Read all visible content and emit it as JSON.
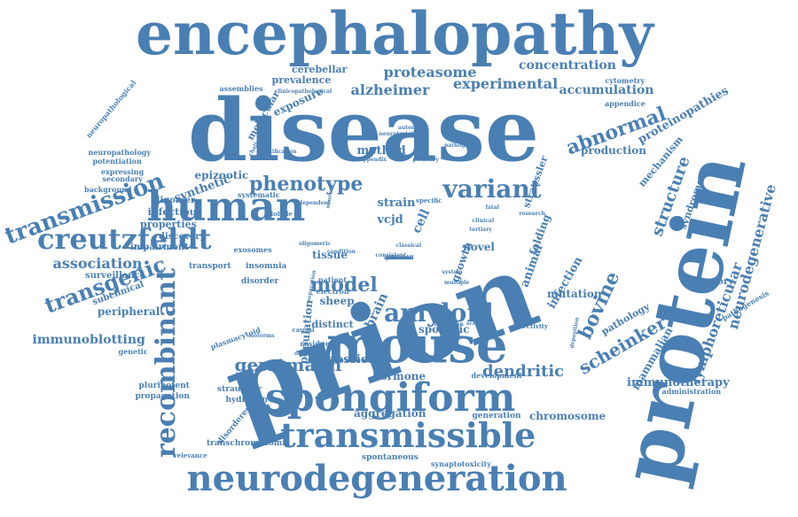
{
  "word_cloud": {
    "color": "#4a7fb3",
    "words": [
      {
        "text": "prion",
        "size": "xxl",
        "orientation": -20
      },
      {
        "text": "disease",
        "size": "xxl",
        "orientation": 0
      },
      {
        "text": "protein",
        "size": "xxl",
        "orientation": -78
      },
      {
        "text": "encephalopathy",
        "size": "xl",
        "orientation": 0
      },
      {
        "text": "mouse",
        "size": "xl",
        "orientation": 0
      },
      {
        "text": "spongiform",
        "size": "xl",
        "orientation": 0
      },
      {
        "text": "neurodegeneration",
        "size": "xl",
        "orientation": 0
      },
      {
        "text": "transmissible",
        "size": "xl",
        "orientation": 0
      },
      {
        "text": "human",
        "size": "l",
        "orientation": 0
      },
      {
        "text": "creutzfeldt",
        "size": "l",
        "orientation": 0
      },
      {
        "text": "transmission",
        "size": "l",
        "orientation": -20
      },
      {
        "text": "transgenic",
        "size": "l",
        "orientation": -20
      },
      {
        "text": "amyloid",
        "size": "l",
        "orientation": 0
      },
      {
        "text": "recombinant",
        "size": "l",
        "orientation": -90
      },
      {
        "text": "variant",
        "size": "m",
        "orientation": 0
      },
      {
        "text": "phenotype",
        "size": "m",
        "orientation": 0
      },
      {
        "text": "abnormal",
        "size": "m",
        "orientation": -20
      },
      {
        "text": "proteasome",
        "size": "m",
        "orientation": 0
      },
      {
        "text": "experimental",
        "size": "m",
        "orientation": 0
      },
      {
        "text": "alzheimer",
        "size": "m",
        "orientation": 0
      },
      {
        "text": "concentration",
        "size": "m",
        "orientation": 0
      },
      {
        "text": "accumulation",
        "size": "m",
        "orientation": 0
      },
      {
        "text": "model",
        "size": "m",
        "orientation": 0
      },
      {
        "text": "gerstmann",
        "size": "m",
        "orientation": 0
      },
      {
        "text": "dendritic",
        "size": "m",
        "orientation": 0
      },
      {
        "text": "bovine",
        "size": "m",
        "orientation": -65
      },
      {
        "text": "scheinker",
        "size": "m",
        "orientation": -30
      },
      {
        "text": "structure",
        "size": "m",
        "orientation": -70
      },
      {
        "text": "neurodegenerative",
        "size": "m",
        "orientation": -75
      },
      {
        "text": "lymphoreticular",
        "size": "m",
        "orientation": -70
      },
      {
        "text": "association",
        "size": "s",
        "orientation": 0
      },
      {
        "text": "immunoblotting",
        "size": "s",
        "orientation": 0
      },
      {
        "text": "immunotherapy",
        "size": "s",
        "orientation": 0
      },
      {
        "text": "expression",
        "size": "s",
        "orientation": 0
      },
      {
        "text": "hormone",
        "size": "s",
        "orientation": 0
      },
      {
        "text": "aggregation",
        "size": "s",
        "orientation": 0
      },
      {
        "text": "chromosome",
        "size": "s",
        "orientation": 0
      },
      {
        "text": "production",
        "size": "s",
        "orientation": 0
      },
      {
        "text": "mechanism",
        "size": "s",
        "orientation": -50
      },
      {
        "text": "syndrome",
        "size": "s",
        "orientation": -70
      },
      {
        "text": "proteinopathies",
        "size": "s",
        "orientation": -30
      },
      {
        "text": "strain",
        "size": "s",
        "orientation": 0
      },
      {
        "text": "vcjd",
        "size": "s",
        "orientation": 0
      },
      {
        "text": "method",
        "size": "s",
        "orientation": 0
      },
      {
        "text": "cell",
        "size": "s",
        "orientation": -65
      },
      {
        "text": "brain",
        "size": "s",
        "orientation": -65
      },
      {
        "text": "sheep",
        "size": "s",
        "orientation": 0
      },
      {
        "text": "novel",
        "size": "s",
        "orientation": 0
      },
      {
        "text": "infection",
        "size": "s",
        "orientation": -60
      },
      {
        "text": "mutation",
        "size": "s",
        "orientation": 0
      },
      {
        "text": "folding",
        "size": "s",
        "orientation": -70
      },
      {
        "text": "synthetic",
        "size": "s",
        "orientation": -20
      },
      {
        "text": "epizootic",
        "size": "s",
        "orientation": 0
      },
      {
        "text": "infectious",
        "size": "s",
        "orientation": 0
      },
      {
        "text": "properties",
        "size": "s",
        "orientation": 0
      },
      {
        "text": "exposure",
        "size": "s",
        "orientation": -25
      },
      {
        "text": "prevalence",
        "size": "s",
        "orientation": 0
      },
      {
        "text": "cerebellar",
        "size": "s",
        "orientation": 0
      },
      {
        "text": "molecular",
        "size": "s",
        "orientation": -60
      },
      {
        "text": "population",
        "size": "s",
        "orientation": -85
      },
      {
        "text": "peripheral",
        "size": "s",
        "orientation": 0
      },
      {
        "text": "tissue",
        "size": "s",
        "orientation": 0
      },
      {
        "text": "sporadic",
        "size": "s",
        "orientation": 0
      },
      {
        "text": "distinct",
        "size": "s",
        "orientation": 0
      },
      {
        "text": "mammalian",
        "size": "s",
        "orientation": -60
      },
      {
        "text": "pathology",
        "size": "s",
        "orientation": -30
      },
      {
        "text": "laboratory",
        "size": "s",
        "orientation": 0
      },
      {
        "text": "animal",
        "size": "s",
        "orientation": -70
      },
      {
        "text": "growth",
        "size": "s",
        "orientation": -70
      },
      {
        "text": "straussler",
        "size": "s",
        "orientation": -70
      },
      {
        "text": "oligomer",
        "size": "xs",
        "orientation": 0
      },
      {
        "text": "discovery",
        "size": "xs",
        "orientation": 0
      },
      {
        "text": "impairment",
        "size": "xs",
        "orientation": 0
      },
      {
        "text": "subclinical",
        "size": "xs",
        "orientation": -20
      },
      {
        "text": "surveillance",
        "size": "xs",
        "orientation": 0
      },
      {
        "text": "transport",
        "size": "xs",
        "orientation": 0
      },
      {
        "text": "insomnia",
        "size": "xs",
        "orientation": 0
      },
      {
        "text": "disorder",
        "size": "xs",
        "orientation": 0
      },
      {
        "text": "pluripotent",
        "size": "xs",
        "orientation": 0
      },
      {
        "text": "propagation",
        "size": "xs",
        "orientation": 0
      },
      {
        "text": "straussler",
        "size": "xs",
        "orientation": 0
      },
      {
        "text": "hydrogen",
        "size": "xs",
        "orientation": 0
      },
      {
        "text": "disordered",
        "size": "xs",
        "orientation": -50
      },
      {
        "text": "transchromosomic",
        "size": "xs",
        "orientation": 0
      },
      {
        "text": "spontaneous",
        "size": "xs",
        "orientation": 0
      },
      {
        "text": "synaptotoxicity",
        "size": "xs",
        "orientation": 0
      },
      {
        "text": "generation",
        "size": "xs",
        "orientation": 0
      },
      {
        "text": "administration",
        "size": "xs",
        "orientation": 0
      },
      {
        "text": "pathogenesis",
        "size": "xs",
        "orientation": -30
      },
      {
        "text": "appendice",
        "size": "xs",
        "orientation": 0
      },
      {
        "text": "cytometry",
        "size": "xs",
        "orientation": 0
      },
      {
        "text": "neuropathological",
        "size": "xs",
        "orientation": -50
      },
      {
        "text": "neuropathology",
        "size": "xs",
        "orientation": 0
      },
      {
        "text": "potentiation",
        "size": "xs",
        "orientation": 0
      },
      {
        "text": "expressing",
        "size": "xs",
        "orientation": 0
      },
      {
        "text": "secondary",
        "size": "xs",
        "orientation": 0
      },
      {
        "text": "background",
        "size": "xs",
        "orientation": 0
      },
      {
        "text": "assemblies",
        "size": "xs",
        "orientation": 0
      },
      {
        "text": "systematic",
        "size": "xs",
        "orientation": 0
      },
      {
        "text": "exosomes",
        "size": "xs",
        "orientation": 0
      },
      {
        "text": "patient",
        "size": "xs",
        "orientation": 0
      },
      {
        "text": "electron",
        "size": "xs",
        "orientation": 0
      },
      {
        "text": "genetic",
        "size": "xs",
        "orientation": 0
      },
      {
        "text": "plasmacytoid",
        "size": "xs",
        "orientation": -20
      },
      {
        "text": "development",
        "size": "xs",
        "orientation": 0
      },
      {
        "text": "infectivity",
        "size": "xs",
        "orientation": 0
      },
      {
        "text": "relevance",
        "size": "xs",
        "orientation": 0
      },
      {
        "text": "clinicopathological",
        "size": "xxs",
        "orientation": 0
      },
      {
        "text": "neurotoxicity",
        "size": "xxs",
        "orientation": 0
      },
      {
        "text": "autonomic",
        "size": "xxs",
        "orientation": 0
      },
      {
        "text": "pathogenic",
        "size": "xxs",
        "orientation": 0
      },
      {
        "text": "challenge",
        "size": "xxs",
        "orientation": -60
      },
      {
        "text": "identification",
        "size": "xxs",
        "orientation": 0
      },
      {
        "text": "appendix",
        "size": "xxs",
        "orientation": 0
      },
      {
        "text": "pituitary",
        "size": "xxs",
        "orientation": 0
      },
      {
        "text": "globule",
        "size": "xxs",
        "orientation": 0
      },
      {
        "text": "specific",
        "size": "xxs",
        "orientation": 0
      },
      {
        "text": "tertiary",
        "size": "xxs",
        "orientation": 0
      },
      {
        "text": "clinical",
        "size": "xxs",
        "orientation": 0
      },
      {
        "text": "system",
        "size": "xxs",
        "orientation": 0
      },
      {
        "text": "multiple",
        "size": "xxs",
        "orientation": 0
      },
      {
        "text": "scrapie",
        "size": "xxs",
        "orientation": 0
      },
      {
        "text": "residue",
        "size": "xxs",
        "orientation": 0
      },
      {
        "text": "causal",
        "size": "xxs",
        "orientation": 0
      },
      {
        "text": "isoforms",
        "size": "xxs",
        "orientation": 0
      },
      {
        "text": "diagnosis",
        "size": "xxs",
        "orientation": 0
      },
      {
        "text": "deposition",
        "size": "xxs",
        "orientation": -80
      },
      {
        "text": "separation",
        "size": "xxs",
        "orientation": -80
      },
      {
        "text": "neurons",
        "size": "xxs",
        "orientation": -80
      },
      {
        "text": "dependent",
        "size": "xxs",
        "orientation": 0
      },
      {
        "text": "oligomeric",
        "size": "xxs",
        "orientation": 0
      },
      {
        "text": "consistent",
        "size": "xxs",
        "orientation": 0
      },
      {
        "text": "classical",
        "size": "xxs",
        "orientation": 0
      },
      {
        "text": "formation",
        "size": "xxs",
        "orientation": 0
      },
      {
        "text": "condition",
        "size": "xxs",
        "orientation": 0
      },
      {
        "text": "fatal",
        "size": "xxs",
        "orientation": 0
      },
      {
        "text": "research",
        "size": "xxs",
        "orientation": 0
      },
      {
        "text": "inbred",
        "size": "xxs",
        "orientation": 0
      },
      {
        "text": "terminal",
        "size": "xxs",
        "orientation": 0
      },
      {
        "text": "immune",
        "size": "xxs",
        "orientation": 0
      },
      {
        "text": "individual",
        "size": "xxs",
        "orientation": 0
      },
      {
        "text": "presence",
        "size": "xxs",
        "orientation": 0
      },
      {
        "text": "alternate",
        "size": "xxs",
        "orientation": 0
      }
    ]
  }
}
